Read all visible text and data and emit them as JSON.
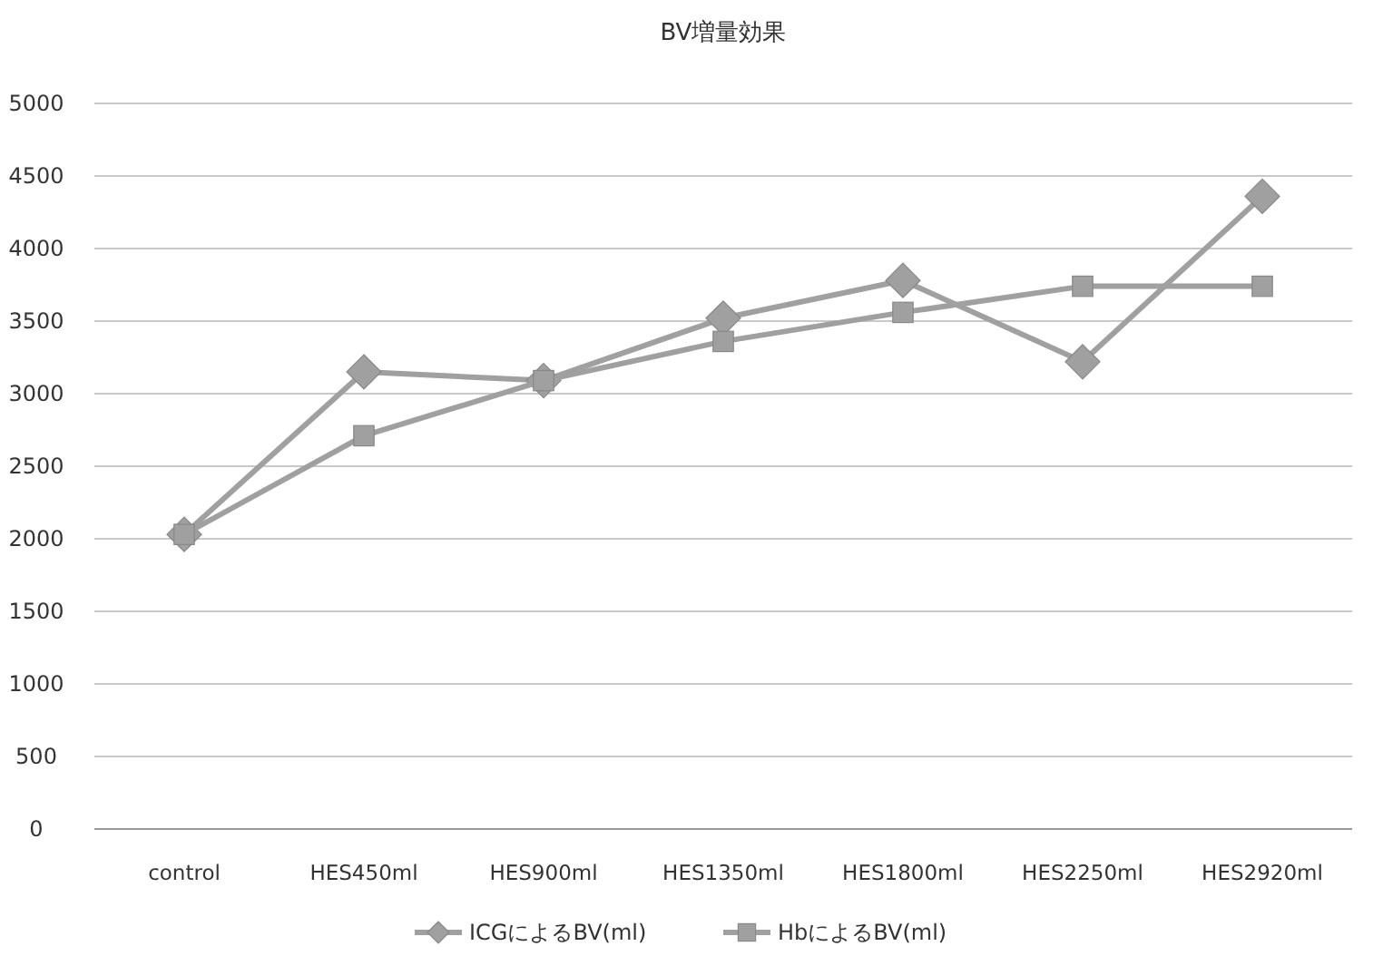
{
  "chart_data": {
    "type": "line",
    "title": "BV増量効果",
    "categories": [
      "control",
      "HES450ml",
      "HES900ml",
      "HES1350ml",
      "HES1800ml",
      "HES2250ml",
      "HES2920ml"
    ],
    "series": [
      {
        "name": "ICGによるBV(ml)",
        "color": "#a0a0a0",
        "marker": "diamond",
        "values": [
          2030,
          3150,
          3090,
          3520,
          3780,
          3220,
          4360
        ]
      },
      {
        "name": "HbによるBV(ml)",
        "color": "#a0a0a0",
        "marker": "square",
        "values": [
          2030,
          2710,
          3090,
          3360,
          3560,
          3740,
          3740
        ]
      }
    ],
    "ylim": [
      0,
      5000
    ],
    "yticks": [
      0,
      500,
      1000,
      1500,
      2000,
      2500,
      3000,
      3500,
      4000,
      4500,
      5000
    ],
    "grid": "y",
    "legend": "bottom"
  }
}
